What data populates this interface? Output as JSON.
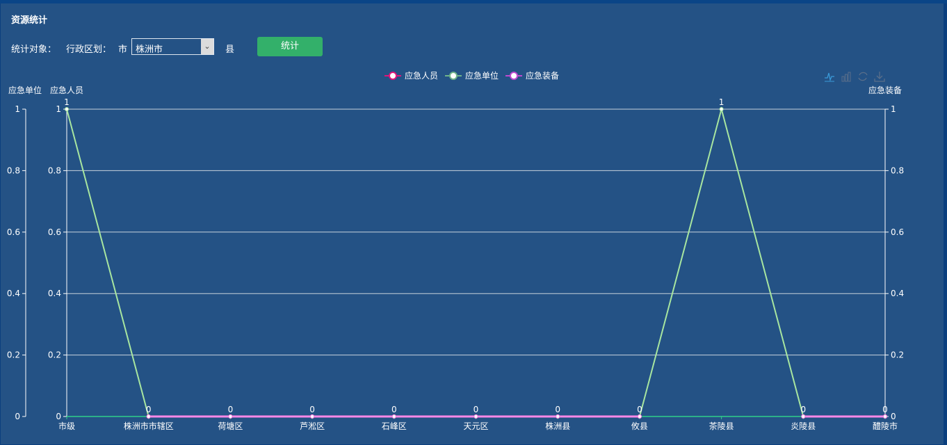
{
  "header": {
    "title": "资源统计"
  },
  "filter": {
    "target_label": "统计对象：",
    "region_label": "行政区划：",
    "city_label": "市",
    "city_value": "株洲市",
    "county_label": "县",
    "submit_label": "统计"
  },
  "toolbox": [
    "line-chart-icon",
    "bar-chart-icon",
    "refresh-icon",
    "download-icon"
  ],
  "chart_data": {
    "type": "line",
    "categories": [
      "市级",
      "株洲市市辖区",
      "荷塘区",
      "芦淞区",
      "石峰区",
      "天元区",
      "株洲县",
      "攸县",
      "茶陵县",
      "炎陵县",
      "醴陵市"
    ],
    "legend": [
      "应急人员",
      "应急单位",
      "应急装备"
    ],
    "legend_position": "top-center",
    "y_axes": [
      {
        "name": "应急单位",
        "position": "left-outer",
        "ylim": [
          0,
          1
        ],
        "ticks": [
          "0",
          "0.2",
          "0.4",
          "0.6",
          "0.8",
          "1"
        ]
      },
      {
        "name": "应急人员",
        "position": "left",
        "ylim": [
          0,
          1
        ],
        "ticks": [
          "0",
          "0.2",
          "0.4",
          "0.6",
          "0.8",
          "1"
        ]
      },
      {
        "name": "应急装备",
        "position": "right",
        "ylim": [
          0,
          1
        ],
        "ticks": [
          "0",
          "0.2",
          "0.4",
          "0.6",
          "0.8",
          "1"
        ]
      }
    ],
    "grid": true,
    "series": [
      {
        "name": "应急人员",
        "color": "#e0157a",
        "values": [
          null,
          0,
          0,
          0,
          0,
          0,
          0,
          0,
          null,
          0,
          0
        ]
      },
      {
        "name": "应急单位",
        "color": "#a8e6a0",
        "values": [
          1,
          0,
          0,
          0,
          0,
          0,
          0,
          0,
          1,
          0,
          0
        ]
      },
      {
        "name": "应急装备",
        "color": "#ff88e8",
        "values": [
          null,
          0,
          0,
          0,
          0,
          0,
          0,
          0,
          null,
          0,
          0
        ]
      }
    ]
  }
}
